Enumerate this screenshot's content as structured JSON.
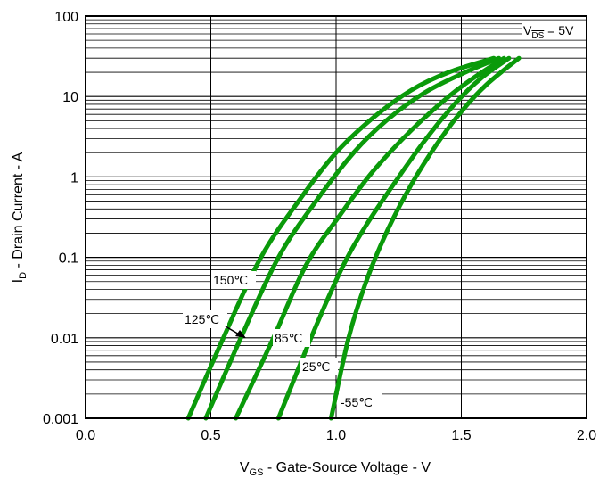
{
  "chart_data": {
    "type": "line",
    "xlabel_main": "V",
    "xlabel_sub": "GS",
    "xlabel_rest": " - Gate-Source Voltage - V",
    "ylabel_main": "I",
    "ylabel_sub": "D",
    "ylabel_rest": " - Drain Current - A",
    "x_ticks": [
      "0.0",
      "0.5",
      "1.0",
      "1.5",
      "2.0"
    ],
    "y_ticks": [
      "0.001",
      "0.01",
      "0.1",
      "1",
      "10",
      "100"
    ],
    "xlim": [
      0,
      2.0
    ],
    "ylim": [
      0.001,
      100
    ],
    "y_scale": "log",
    "grid": true,
    "condition": {
      "main": "V",
      "sub": "DS",
      "rest": " = 5V"
    },
    "line_color": "#0a9a0a",
    "series": [
      {
        "name": "150℃",
        "x": [
          0.41,
          0.55,
          0.7,
          0.85,
          1.0,
          1.15,
          1.3,
          1.45,
          1.63
        ],
        "y": [
          0.001,
          0.01,
          0.1,
          0.5,
          2.0,
          5.5,
          12,
          20,
          30
        ]
      },
      {
        "name": "125℃",
        "x": [
          0.48,
          0.62,
          0.77,
          0.92,
          1.07,
          1.2,
          1.35,
          1.5,
          1.65
        ],
        "y": [
          0.001,
          0.01,
          0.1,
          0.5,
          2.0,
          5.0,
          11,
          19,
          30
        ]
      },
      {
        "name": "85℃",
        "x": [
          0.6,
          0.75,
          0.88,
          1.02,
          1.15,
          1.3,
          1.45,
          1.56,
          1.67
        ],
        "y": [
          0.001,
          0.01,
          0.08,
          0.35,
          1.2,
          3.8,
          10,
          18,
          30
        ]
      },
      {
        "name": "25℃",
        "x": [
          0.77,
          0.9,
          1.02,
          1.12,
          1.25,
          1.36,
          1.48,
          1.58,
          1.69
        ],
        "y": [
          0.001,
          0.01,
          0.07,
          0.25,
          1.0,
          3.0,
          8.5,
          17,
          30
        ]
      },
      {
        "name": "-55℃",
        "x": [
          0.98,
          1.05,
          1.12,
          1.2,
          1.3,
          1.4,
          1.5,
          1.6,
          1.73
        ],
        "y": [
          0.001,
          0.01,
          0.05,
          0.2,
          0.8,
          2.5,
          6.5,
          14,
          30
        ]
      }
    ]
  }
}
